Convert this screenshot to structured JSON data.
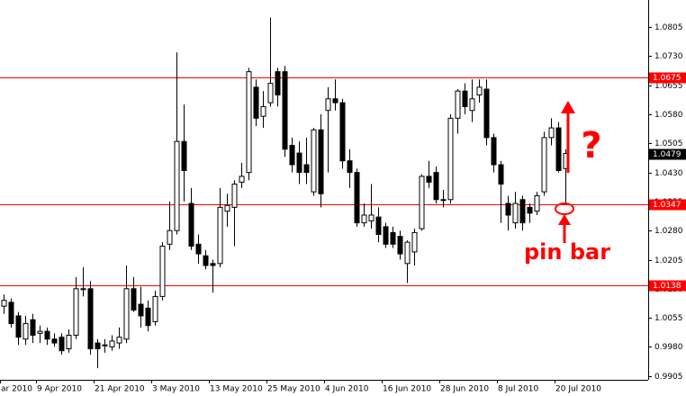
{
  "chart_data": {
    "type": "candlestick",
    "categories": [
      "ar 2010",
      null,
      null,
      null,
      null,
      "9 Apr 2010",
      null,
      null,
      null,
      null,
      null,
      null,
      null,
      "21 Apr 2010",
      null,
      null,
      null,
      null,
      null,
      null,
      null,
      "3 May 2010",
      null,
      null,
      null,
      null,
      null,
      null,
      null,
      "13 May 2010",
      null,
      null,
      null,
      null,
      null,
      null,
      null,
      "25 May 2010",
      null,
      null,
      null,
      null,
      null,
      null,
      null,
      "4 Jun 2010",
      null,
      null,
      null,
      null,
      null,
      null,
      null,
      "16 Jun 2010",
      null,
      null,
      null,
      null,
      null,
      null,
      null,
      "28 Jun 2010",
      null,
      null,
      null,
      null,
      null,
      null,
      null,
      "8 Jul 2010",
      null,
      null,
      null,
      null,
      null,
      null,
      null,
      "20 Jul 2010",
      null
    ],
    "open": [
      1.0085,
      1.0095,
      1.006,
      1.0,
      1.005,
      1.0015,
      1.002,
      1.0,
      1.0005,
      0.9975,
      1.001,
      1.013,
      1.013,
      0.999,
      0.9985,
      0.998,
      0.999,
      1.0,
      1.013,
      1.009,
      1.008,
      1.0045,
      1.011,
      1.0245,
      1.028,
      1.051,
      1.035,
      1.0245,
      1.0215,
      1.0195,
      1.0195,
      1.033,
      1.034,
      1.0405,
      1.043,
      1.065,
      1.0575,
      1.061,
      1.069,
      1.069,
      1.05,
      1.048,
      1.045,
      1.038,
      1.054,
      1.059,
      1.062,
      1.061,
      1.046,
      1.043,
      1.03,
      1.0305,
      1.0315,
      1.029,
      1.0275,
      1.0265,
      1.0195,
      1.0225,
      1.0285,
      1.042,
      1.043,
      1.036,
      1.036,
      1.057,
      1.064,
      1.059,
      1.063,
      1.0645,
      1.052,
      1.045,
      1.035,
      1.03,
      1.036,
      1.034,
      1.033,
      1.038,
      1.052,
      1.0545,
      1.044
    ],
    "high": [
      1.0115,
      1.0105,
      1.007,
      1.006,
      1.0065,
      1.0035,
      1.003,
      1.0015,
      1.0015,
      1.0025,
      1.016,
      1.0185,
      1.015,
      1.0,
      1.0,
      1.001,
      1.003,
      1.019,
      1.016,
      1.0135,
      1.01,
      1.0125,
      1.025,
      1.0355,
      1.074,
      1.0605,
      1.039,
      1.027,
      1.023,
      1.0205,
      1.039,
      1.0375,
      1.041,
      1.0455,
      1.07,
      1.067,
      1.064,
      1.083,
      1.07,
      1.0705,
      1.052,
      1.051,
      1.052,
      1.0545,
      1.058,
      1.065,
      1.067,
      1.062,
      1.049,
      1.044,
      1.035,
      1.04,
      1.034,
      1.03,
      1.029,
      1.028,
      1.0255,
      1.0285,
      1.0425,
      1.046,
      1.0445,
      1.0385,
      1.058,
      1.0645,
      1.066,
      1.067,
      1.067,
      1.067,
      1.053,
      1.046,
      1.037,
      1.038,
      1.037,
      1.035,
      1.038,
      1.0535,
      1.057,
      1.056,
      1.049
    ],
    "low": [
      1.0065,
      1.003,
      0.9985,
      0.9985,
      0.999,
      0.999,
      0.9985,
      0.998,
      0.996,
      0.9965,
      1.0,
      1.011,
      0.996,
      0.9925,
      0.9965,
      0.997,
      0.9975,
      0.999,
      1.007,
      1.003,
      1.002,
      1.0035,
      1.01,
      1.023,
      1.027,
      1.0355,
      1.023,
      1.0195,
      1.018,
      1.012,
      1.0185,
      1.029,
      1.024,
      1.039,
      1.041,
      1.055,
      1.0545,
      1.06,
      1.06,
      1.047,
      1.043,
      1.04,
      1.04,
      1.037,
      1.034,
      1.043,
      1.059,
      1.044,
      1.039,
      1.029,
      1.029,
      1.0285,
      1.025,
      1.0235,
      1.0235,
      1.0205,
      1.0145,
      1.019,
      1.028,
      1.039,
      1.035,
      1.034,
      1.035,
      1.053,
      1.058,
      1.056,
      1.061,
      1.05,
      1.043,
      1.03,
      1.028,
      1.0285,
      1.028,
      1.03,
      1.032,
      1.037,
      1.05,
      1.043,
      1.035
    ],
    "close": [
      1.01,
      1.004,
      1.0005,
      1.004,
      1.001,
      1.002,
      1.0,
      0.999,
      0.997,
      1.001,
      1.013,
      1.013,
      0.9975,
      0.9975,
      0.9985,
      0.9995,
      1.0005,
      1.013,
      1.0075,
      1.006,
      1.0035,
      1.011,
      1.024,
      1.028,
      1.051,
      1.0435,
      1.024,
      1.022,
      1.019,
      1.019,
      1.034,
      1.0345,
      1.04,
      1.042,
      1.069,
      1.057,
      1.06,
      1.066,
      1.063,
      1.049,
      1.045,
      1.043,
      1.043,
      1.054,
      1.0375,
      1.062,
      1.061,
      1.046,
      1.043,
      1.03,
      1.032,
      1.032,
      1.027,
      1.0245,
      1.0245,
      1.022,
      1.025,
      1.0275,
      1.042,
      1.0405,
      1.036,
      1.036,
      1.057,
      1.064,
      1.06,
      1.062,
      1.065,
      1.052,
      1.045,
      1.04,
      1.032,
      1.035,
      1.03,
      1.0325,
      1.037,
      1.052,
      1.0545,
      1.0435,
      1.0479
    ],
    "ylim": [
      0.9895,
      1.0875
    ],
    "yticks": [
      1.0805,
      {
        "value": 1.073,
        "label": "1.0730"
      },
      1.0655,
      {
        "value": 1.058,
        "label": "1.0580"
      },
      1.0505,
      {
        "value": 1.043,
        "label": "1.0430"
      },
      1.0355,
      {
        "value": 1.028,
        "label": "1.0280"
      },
      1.0205,
      {
        "value": 1.013,
        "label": "1.0130"
      },
      1.0055,
      {
        "value": 0.998,
        "label": "0.9980"
      },
      0.9905
    ],
    "levels": [
      1.0675,
      1.0347,
      1.0138
    ],
    "level_color": "#ff0000",
    "last_price": 1.0479,
    "annotations": [
      "?",
      "pin bar"
    ]
  }
}
